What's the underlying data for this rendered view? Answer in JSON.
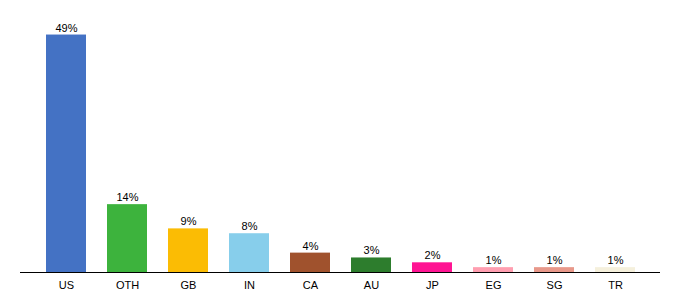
{
  "chart_data": {
    "type": "bar",
    "categories": [
      "US",
      "OTH",
      "GB",
      "IN",
      "CA",
      "AU",
      "JP",
      "EG",
      "SG",
      "TR"
    ],
    "values": [
      49,
      14,
      9,
      8,
      4,
      3,
      2,
      1,
      1,
      1
    ],
    "value_labels": [
      "49%",
      "14%",
      "9%",
      "8%",
      "4%",
      "3%",
      "2%",
      "1%",
      "1%",
      "1%"
    ],
    "colors": [
      "#4472c4",
      "#3db33d",
      "#fbbc04",
      "#87ceeb",
      "#a0522d",
      "#2d7d2d",
      "#ff1493",
      "#ff9eb0",
      "#e8988a",
      "#f5f0dc"
    ],
    "ylim": [
      0,
      52
    ],
    "data_labels": true,
    "tick_labels": "x",
    "grid": false
  }
}
